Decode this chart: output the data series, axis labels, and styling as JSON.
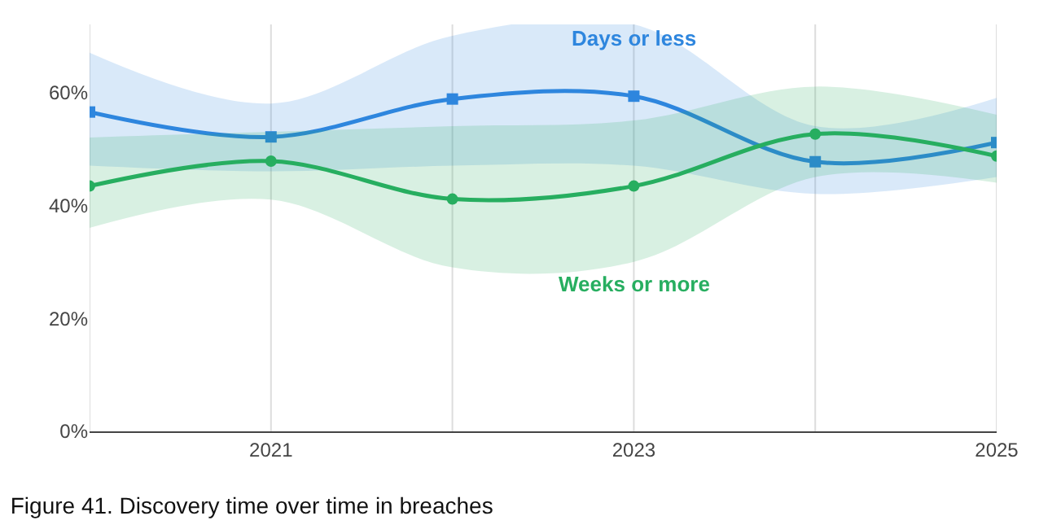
{
  "chart_data": {
    "type": "line",
    "title": "Figure 41. Discovery time over time in breaches",
    "x": [
      2020,
      2021,
      2022,
      2023,
      2024,
      2025
    ],
    "series": [
      {
        "name": "Days or less",
        "color": "#2e86de",
        "marker": "square",
        "values": [
          56.5,
          52.1,
          58.8,
          59.3,
          47.7,
          51.1
        ],
        "lower": [
          47,
          46,
          47,
          47,
          42,
          45
        ],
        "upper": [
          67,
          58,
          70,
          72,
          54,
          59
        ]
      },
      {
        "name": "Weeks or more",
        "color": "#27ae60",
        "marker": "circle",
        "values": [
          43.4,
          47.8,
          41.1,
          43.4,
          52.6,
          48.7
        ],
        "lower": [
          36,
          41,
          29,
          30,
          45,
          44
        ],
        "upper": [
          52,
          53,
          54,
          55,
          61,
          56
        ]
      }
    ],
    "xlim": [
      2020,
      2025
    ],
    "xticks": [
      {
        "value": 2020,
        "label": null
      },
      2021,
      {
        "value": 2022,
        "label": null
      },
      2023,
      {
        "value": 2024,
        "label": null
      },
      2025
    ],
    "ylim": [
      0,
      72
    ],
    "yticks": [
      {
        "value": 0,
        "label": "0%"
      },
      {
        "value": 20,
        "label": "20%"
      },
      {
        "value": 40,
        "label": "40%"
      },
      {
        "value": 60,
        "label": "60%"
      }
    ],
    "grid": "x",
    "legend": false
  }
}
